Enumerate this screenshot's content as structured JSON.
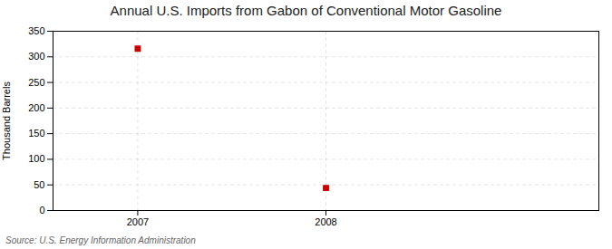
{
  "chart_data": {
    "type": "scatter",
    "title": "Annual U.S. Imports from Gabon of Conventional Motor Gasoline",
    "ylabel": "Thousand Barrels",
    "source": "Source: U.S. Energy Information Administration",
    "x": [
      2007,
      2008
    ],
    "values": [
      316,
      44
    ],
    "xlim": [
      2006.55,
      2009.45
    ],
    "ylim": [
      0,
      350
    ],
    "xticks": [
      2007,
      2008
    ],
    "yticks": [
      0,
      50,
      100,
      150,
      200,
      250,
      300,
      350
    ],
    "grid": true,
    "color": "#CC0000",
    "marker": "square"
  }
}
